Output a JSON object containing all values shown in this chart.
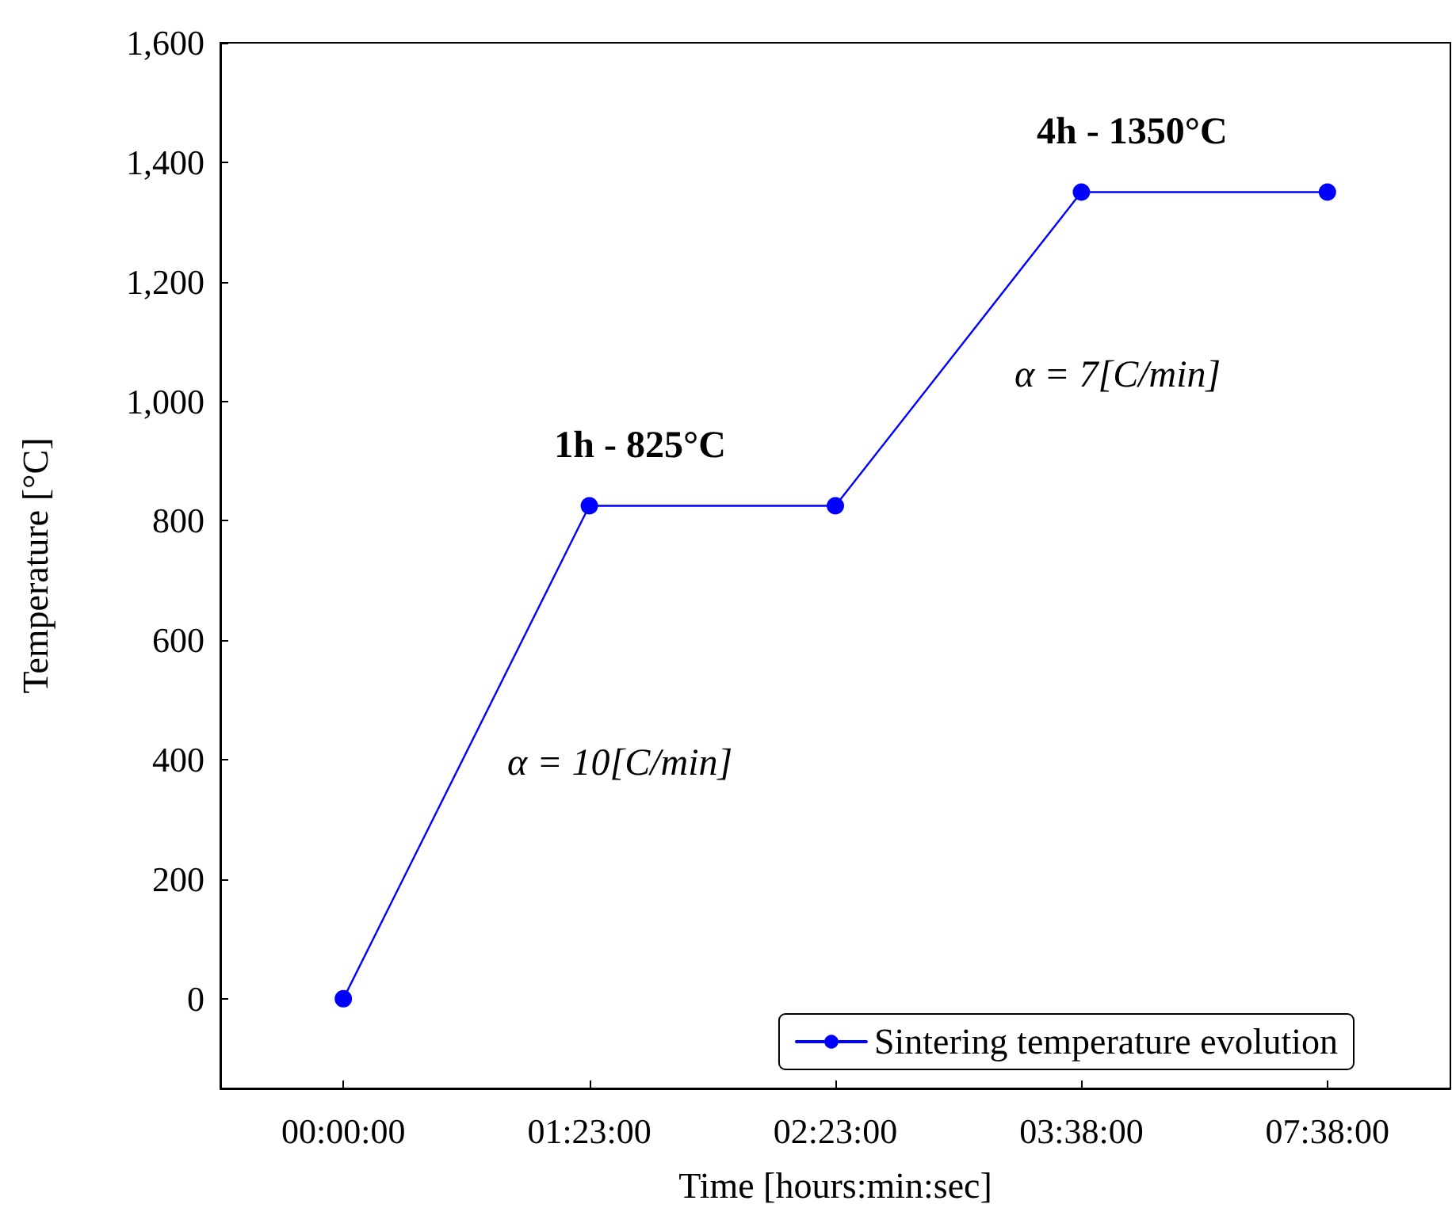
{
  "chart_data": {
    "type": "line",
    "xlabel": "Time [hours:min:sec]",
    "ylabel": "Temperature [°C]",
    "categories": [
      "00:00:00",
      "01:23:00",
      "02:23:00",
      "03:38:00",
      "07:38:00"
    ],
    "series": [
      {
        "name": "Sintering temperature evolution",
        "color": "#0000ff",
        "values": [
          0,
          825,
          825,
          1350,
          1350
        ]
      }
    ],
    "ylim": [
      -150,
      1600
    ],
    "yticks": [
      {
        "value": 0,
        "label": "0"
      },
      {
        "value": 200,
        "label": "200"
      },
      {
        "value": 400,
        "label": "400"
      },
      {
        "value": 600,
        "label": "600"
      },
      {
        "value": 800,
        "label": "800"
      },
      {
        "value": 1000,
        "label": "1,000"
      },
      {
        "value": 1200,
        "label": "1,200"
      },
      {
        "value": 1400,
        "label": "1,400"
      },
      {
        "value": 1600,
        "label": "1,600"
      }
    ],
    "grid": false,
    "legend": "bottom right",
    "marker": "circle",
    "line_style": "solid",
    "annotations": [
      {
        "text": "1h - 825°C",
        "x": "01:23:00",
        "y": 825
      },
      {
        "text": "4h - 1350°C",
        "x": "03:38:00",
        "y": 1350
      },
      "α = 10[C/min]",
      "α = 7[C/min]"
    ]
  }
}
